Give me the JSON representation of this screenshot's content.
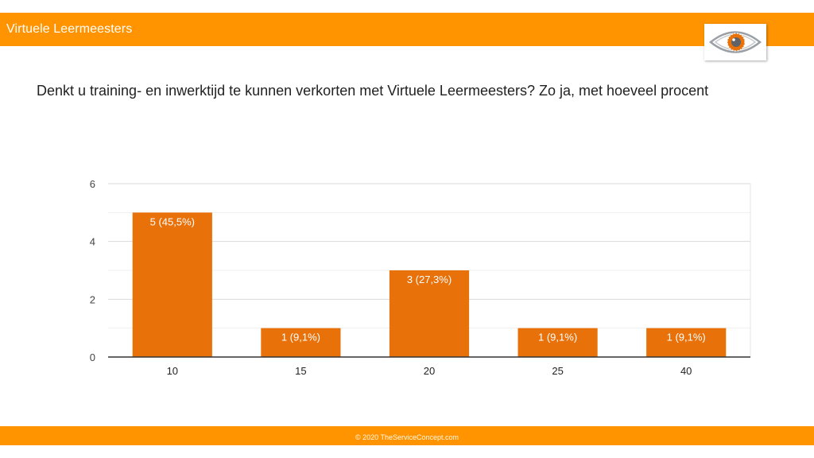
{
  "header": {
    "brand": "Virtuele Leermeesters",
    "logo_icon": "eye-logo-icon"
  },
  "question": "Denkt u training- en inwerktijd te kunnen verkorten met Virtuele Leermeesters? Zo ja, met hoeveel procent",
  "footer": {
    "copyright": "© 2020  TheServiceConcept.com"
  },
  "colors": {
    "accent": "#ff9400",
    "bar": "#e8710a"
  },
  "chart_data": {
    "type": "bar",
    "title": "",
    "xlabel": "",
    "ylabel": "",
    "categories": [
      "10",
      "15",
      "20",
      "25",
      "40"
    ],
    "values": [
      5,
      1,
      3,
      1,
      1
    ],
    "data_labels": [
      "5 (45,5%)",
      "1 (9,1%)",
      "3 (27,3%)",
      "1 (9,1%)",
      "1 (9,1%)"
    ],
    "ylim": [
      0,
      6
    ],
    "yticks": [
      "0",
      "2",
      "4",
      "6"
    ],
    "grid": true,
    "legend": "none"
  }
}
